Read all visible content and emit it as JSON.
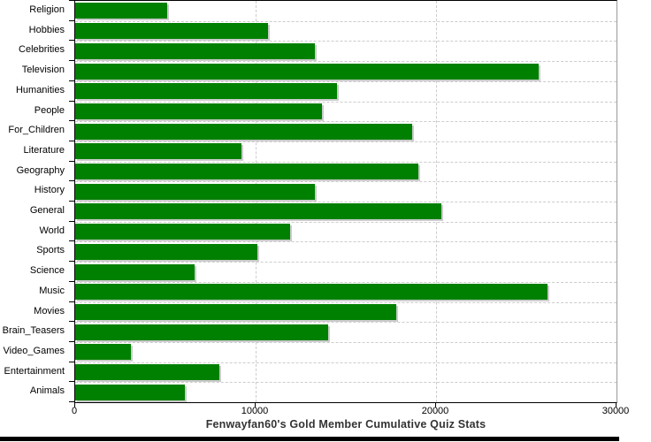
{
  "chart_data": {
    "type": "bar",
    "orientation": "horizontal",
    "title": "Fenwayfan60's Gold Member Cumulative Quiz Stats",
    "categories": [
      "Religion",
      "Hobbies",
      "Celebrities",
      "Television",
      "Humanities",
      "People",
      "For_Children",
      "Literature",
      "Geography",
      "History",
      "General",
      "World",
      "Sports",
      "Science",
      "Music",
      "Movies",
      "Brain_Teasers",
      "Video_Games",
      "Entertainment",
      "Animals"
    ],
    "values": [
      5100,
      10700,
      13300,
      25700,
      14500,
      13700,
      18700,
      9200,
      19000,
      13300,
      20300,
      11900,
      10100,
      6600,
      26200,
      17800,
      14000,
      3100,
      8000,
      6100
    ],
    "xlim": [
      0,
      30000
    ],
    "x_ticks": [
      0,
      10000,
      20000,
      30000
    ],
    "x_tick_labels": [
      "0",
      "10000",
      "20000",
      "30000"
    ],
    "grid": "dashed",
    "legend": "none",
    "colors": {
      "bar": "#008000",
      "bar_shadow": "#cccccc",
      "grid": "#cccccc",
      "axis": "#000000",
      "label": "#000000",
      "title": "#333333",
      "plot_border_right": "#999999",
      "bottom_bar": "#000000"
    }
  }
}
